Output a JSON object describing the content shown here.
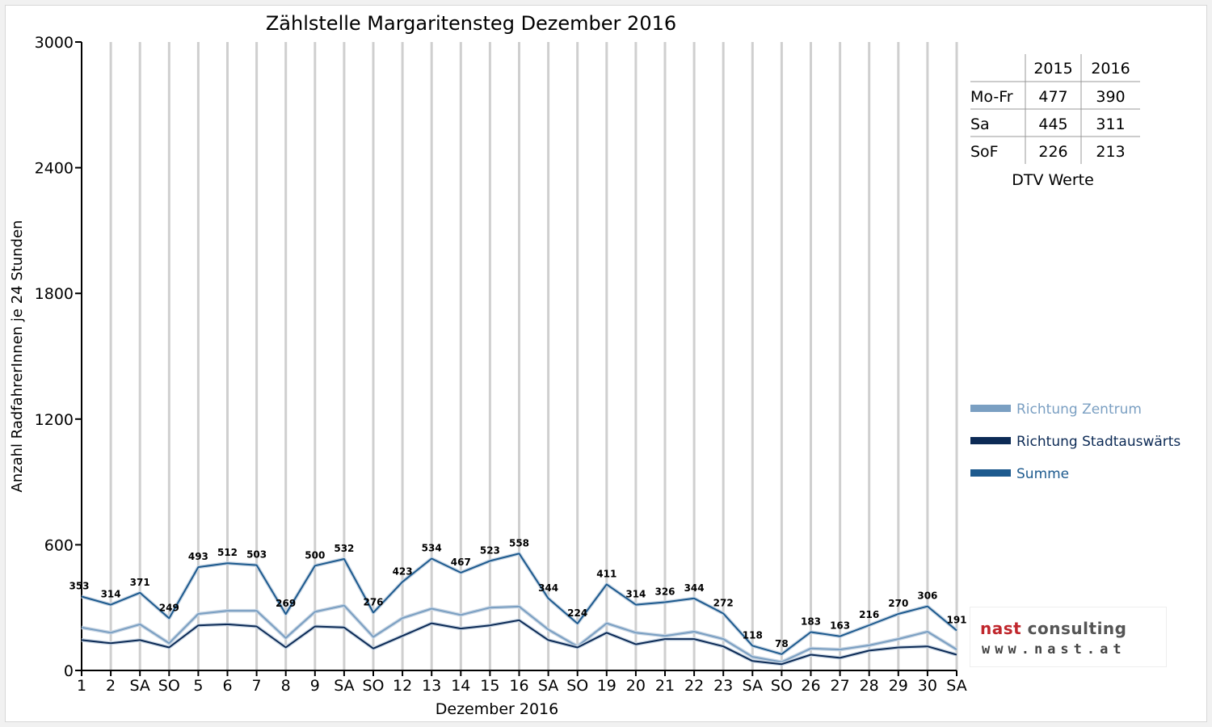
{
  "chart_data": {
    "type": "line",
    "title": "Zählstelle Margaritensteg Dezember 2016",
    "xlabel": "Dezember 2016",
    "ylabel": "Anzahl RadfahrerInnen je 24 Stunden",
    "ylim": [
      0,
      3000
    ],
    "yticks": [
      "0",
      "600",
      "1200",
      "1800",
      "2400",
      "3000"
    ],
    "grid": true,
    "legend_position": "right",
    "categories": [
      "1",
      "2",
      "SA",
      "SO",
      "5",
      "6",
      "7",
      "8",
      "9",
      "SA",
      "SO",
      "12",
      "13",
      "14",
      "15",
      "16",
      "SA",
      "SO",
      "19",
      "20",
      "21",
      "22",
      "23",
      "SA",
      "SO",
      "26",
      "27",
      "28",
      "29",
      "30",
      "SA"
    ],
    "red_categories": [
      3,
      7,
      10,
      17,
      24,
      25
    ],
    "series": [
      {
        "name": "Richtung Zentrum",
        "color": "#7a9fc2",
        "values": [
          205,
          180,
          220,
          130,
          270,
          285,
          285,
          155,
          280,
          310,
          160,
          250,
          295,
          265,
          300,
          305,
          195,
          115,
          225,
          180,
          165,
          185,
          150,
          65,
          40,
          105,
          100,
          120,
          150,
          185,
          100
        ]
      },
      {
        "name": "Richtung Stadtauswärts",
        "color": "#0c2a55",
        "values": [
          145,
          130,
          145,
          110,
          215,
          220,
          210,
          110,
          210,
          205,
          105,
          165,
          225,
          200,
          215,
          240,
          145,
          110,
          180,
          125,
          150,
          150,
          115,
          45,
          30,
          75,
          60,
          95,
          110,
          115,
          75
        ]
      },
      {
        "name": "Summe",
        "color": "#1d5a8e",
        "labeled": true,
        "values": [
          353,
          314,
          371,
          249,
          493,
          512,
          503,
          269,
          500,
          532,
          276,
          423,
          534,
          467,
          523,
          558,
          344,
          224,
          411,
          314,
          326,
          344,
          272,
          118,
          78,
          183,
          163,
          216,
          270,
          306,
          191
        ]
      }
    ]
  },
  "dtv_table": {
    "headers": [
      "",
      "2015",
      "2016"
    ],
    "rows": [
      {
        "label": "Mo-Fr",
        "v2015": "477",
        "v2016": "390"
      },
      {
        "label": "Sa",
        "v2015": "445",
        "v2016": "311"
      },
      {
        "label": "SoF",
        "v2015": "226",
        "v2016": "213"
      }
    ],
    "caption": "DTV Werte"
  },
  "logo": {
    "name_part1": "nast ",
    "name_part2": "consulting",
    "url": "www.nast.at"
  },
  "colors": {
    "weekend_red": "#ff0000",
    "grid": "#cfcfcf"
  }
}
